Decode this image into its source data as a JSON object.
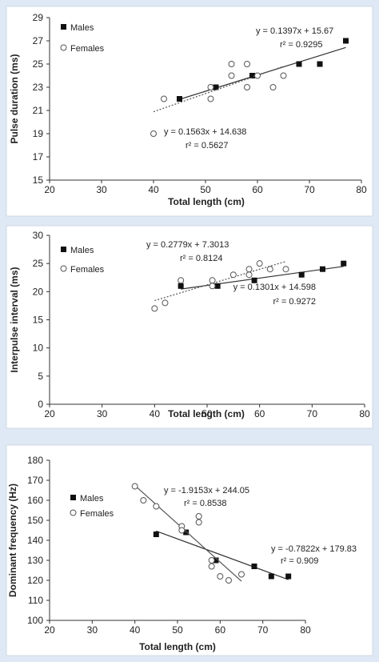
{
  "chart_data": [
    {
      "type": "scatter",
      "title": "",
      "xlabel": "Total length (cm)",
      "ylabel": "Pulse duration (ms)",
      "xlim": [
        20,
        80
      ],
      "ylim": [
        15,
        29
      ],
      "xticks": [
        20,
        30,
        40,
        50,
        60,
        70,
        80
      ],
      "yticks": [
        15,
        17,
        19,
        21,
        23,
        25,
        27,
        29
      ],
      "legend_position": "top-left",
      "series": [
        {
          "name": "Males",
          "marker": "square",
          "points": [
            [
              45,
              22
            ],
            [
              52,
              23
            ],
            [
              59,
              24
            ],
            [
              68,
              25
            ],
            [
              72,
              25
            ],
            [
              77,
              27
            ]
          ],
          "trendline": {
            "x_range": [
              45,
              77
            ],
            "slope": 0.1397,
            "intercept": 15.67,
            "style": "solid"
          },
          "equation": "y = 0.1397x + 15.67",
          "r2": "r² = 0.9295"
        },
        {
          "name": "Females",
          "marker": "circle",
          "points": [
            [
              40,
              19
            ],
            [
              42,
              22
            ],
            [
              51,
              22
            ],
            [
              51,
              23
            ],
            [
              55,
              24
            ],
            [
              55,
              25
            ],
            [
              58,
              23
            ],
            [
              58,
              25
            ],
            [
              60,
              24
            ],
            [
              63,
              23
            ],
            [
              65,
              24
            ]
          ],
          "trendline": {
            "x_range": [
              40,
              65
            ],
            "slope": 0.1563,
            "intercept": 14.638,
            "style": "dotted"
          },
          "equation": "y = 0.1563x + 14.638",
          "r2": "r² = 0.5627"
        }
      ]
    },
    {
      "type": "scatter",
      "title": "",
      "xlabel": "Total length (cm)",
      "ylabel": "Interpulse interval (ms)",
      "xlim": [
        20,
        80
      ],
      "ylim": [
        0,
        30
      ],
      "xticks": [
        20,
        30,
        40,
        50,
        60,
        70,
        80
      ],
      "yticks": [
        0,
        5,
        10,
        15,
        20,
        25,
        30
      ],
      "legend_position": "top-left",
      "series": [
        {
          "name": "Males",
          "marker": "square",
          "points": [
            [
              45,
              21
            ],
            [
              52,
              21
            ],
            [
              59,
              22
            ],
            [
              68,
              23
            ],
            [
              72,
              24
            ],
            [
              76,
              25
            ]
          ],
          "trendline": {
            "x_range": [
              45,
              76
            ],
            "slope": 0.1301,
            "intercept": 14.598,
            "style": "solid"
          },
          "equation": "y = 0.1301x + 14.598",
          "r2": "r² = 0.9272"
        },
        {
          "name": "Females",
          "marker": "circle",
          "points": [
            [
              40,
              17
            ],
            [
              42,
              18
            ],
            [
              45,
              22
            ],
            [
              51,
              21
            ],
            [
              51,
              22
            ],
            [
              55,
              23
            ],
            [
              58,
              23
            ],
            [
              58,
              24
            ],
            [
              60,
              25
            ],
            [
              62,
              24
            ],
            [
              65,
              24
            ]
          ],
          "trendline": {
            "x_range": [
              40,
              65
            ],
            "slope": 0.2779,
            "intercept": 7.3013,
            "style": "dotted"
          },
          "equation": "y = 0.2779x + 7.3013",
          "r2": "r² = 0.8124"
        }
      ]
    },
    {
      "type": "scatter",
      "title": "",
      "xlabel": "Total length (cm)",
      "ylabel": "Dominant frequency (Hz)",
      "xlim": [
        20,
        80
      ],
      "ylim": [
        100,
        180
      ],
      "xticks": [
        20,
        30,
        40,
        50,
        60,
        70,
        80
      ],
      "yticks": [
        100,
        110,
        120,
        130,
        140,
        150,
        160,
        170,
        180
      ],
      "legend_position": "top-left",
      "series": [
        {
          "name": "Males",
          "marker": "square",
          "points": [
            [
              45,
              143
            ],
            [
              52,
              144
            ],
            [
              59,
              130
            ],
            [
              68,
              127
            ],
            [
              72,
              122
            ],
            [
              76,
              122
            ]
          ],
          "trendline": {
            "x_range": [
              45,
              76
            ],
            "slope": -0.7822,
            "intercept": 179.83,
            "style": "solid"
          },
          "equation": "y = -0.7822x + 179.83",
          "r2": "r² = 0.909"
        },
        {
          "name": "Females",
          "marker": "circle",
          "points": [
            [
              40,
              167
            ],
            [
              42,
              160
            ],
            [
              45,
              157
            ],
            [
              51,
              147
            ],
            [
              51,
              145
            ],
            [
              55,
              152
            ],
            [
              55,
              149
            ],
            [
              58,
              130
            ],
            [
              58,
              127
            ],
            [
              60,
              122
            ],
            [
              62,
              120
            ],
            [
              65,
              123
            ]
          ],
          "trendline": {
            "x_range": [
              40,
              65
            ],
            "slope": -1.9153,
            "intercept": 244.05,
            "style": "solid"
          },
          "equation": "y = -1.9153x + 244.05",
          "r2": "r² = 0.8538"
        }
      ]
    }
  ]
}
